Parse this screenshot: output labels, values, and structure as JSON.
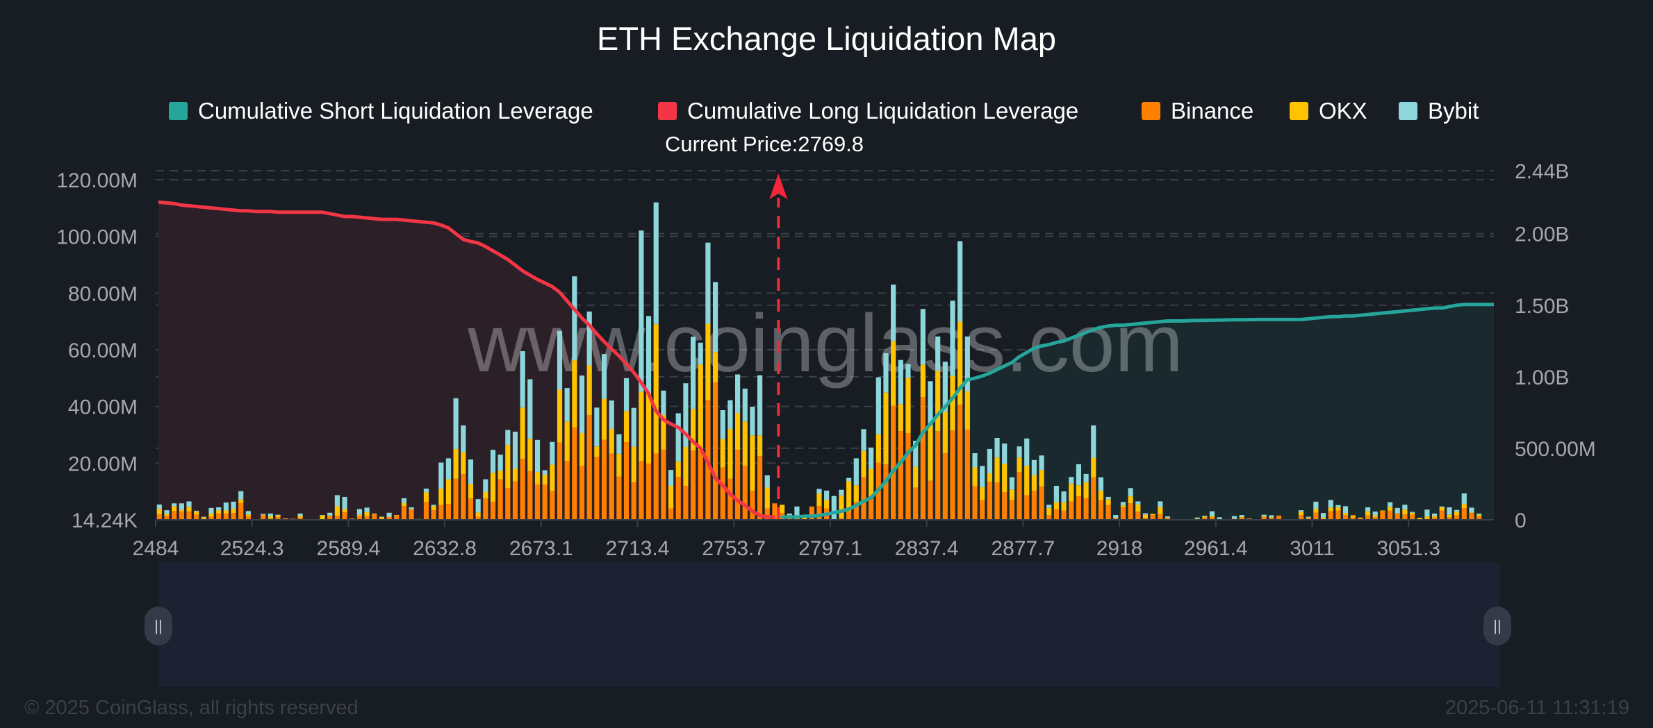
{
  "title": "ETH Exchange Liquidation Map",
  "legend": [
    {
      "label": "Cumulative Short Liquidation Leverage",
      "color": "#26a69a"
    },
    {
      "label": "Cumulative Long Liquidation Leverage",
      "color": "#f23645"
    },
    {
      "label": "Binance",
      "color": "#ff8000"
    },
    {
      "label": "OKX",
      "color": "#ffc300"
    },
    {
      "label": "Bybit",
      "color": "#8dd6da"
    }
  ],
  "current_price_label": "Current Price:2769.8",
  "watermark": "www.coinglass.com",
  "footer": {
    "copyright": "© 2025 CoinGlass, all rights reserved",
    "timestamp": "2025-06-11 11:31:19"
  },
  "slider": {
    "start_handle_icon": "grip-icon",
    "end_handle_icon": "grip-icon"
  },
  "chart_data": {
    "type": "bar",
    "title": "ETH Exchange Liquidation Map",
    "current_price": 2769.8,
    "grid": true,
    "legend_position": "top",
    "x_tick_labels": [
      "2484",
      "2524.3",
      "2589.4",
      "2632.8",
      "2673.1",
      "2713.4",
      "2753.7",
      "2797.1",
      "2837.4",
      "2877.7",
      "2918",
      "2961.4",
      "3011",
      "3051.3"
    ],
    "x_tick_every": 13,
    "left_axis": {
      "unit": "M",
      "ylim": [
        0,
        120
      ],
      "ticks": [
        0,
        20,
        40,
        60,
        80,
        100,
        120
      ],
      "labels": [
        "14.24K",
        "20.00M",
        "40.00M",
        "60.00M",
        "80.00M",
        "100.00M",
        "120.00M"
      ]
    },
    "right_axis": {
      "unit": "B",
      "ylim": [
        0,
        2.44
      ],
      "ticks": [
        0,
        0.5,
        1,
        1.5,
        2,
        2.44
      ],
      "labels": [
        "0",
        "500.00M",
        "1.00B",
        "1.50B",
        "2.00B",
        "2.44B"
      ]
    },
    "series": [
      {
        "name": "Binance",
        "axis": "left",
        "stack": "exchange",
        "values": [
          2.0,
          1.4,
          3.1,
          2.9,
          2.9,
          1.8,
          0.2,
          1.1,
          2.2,
          2.2,
          2.4,
          5.9,
          1.3,
          0.1,
          1.6,
          0.4,
          0.9,
          0.4,
          0.4,
          0.7,
          0.1,
          0,
          0.2,
          1.3,
          1.4,
          2.7,
          0.3,
          1.3,
          1.2,
          1.9,
          0.3,
          1.0,
          1.6,
          4.9,
          3.7,
          0.2,
          6.3,
          3.4,
          5.2,
          5.6,
          14.5,
          16.1,
          7.5,
          1.1,
          7.5,
          6.3,
          14.3,
          11.2,
          13.6,
          21.5,
          17.2,
          12.4,
          12.4,
          10.1,
          27.3,
          20.8,
          32.6,
          19.0,
          36.9,
          22.2,
          28.2,
          23.4,
          15.3,
          27.4,
          13.2,
          20.8,
          19.8,
          23.4,
          24.7,
          4.0,
          15.1,
          12.0,
          24.4,
          24.4,
          42.2,
          48.5,
          18.5,
          14.5,
          24.7,
          19.1,
          10.2,
          22.5,
          4.0,
          5.8,
          2.4,
          0.7,
          0.2,
          0.2,
          4.7,
          4.9,
          4.0,
          0.2,
          0.6,
          3.0,
          6.3,
          15.0,
          7.9,
          20.2,
          19.6,
          40.2,
          31.3,
          30.6,
          11.4,
          43.3,
          13.8,
          31.3,
          23.5,
          31.6,
          40.6,
          31.8,
          11.8,
          6.8,
          13.4,
          13.2,
          9.7,
          7.0,
          16.9,
          8.7,
          10.2,
          11.7,
          1.7,
          3.7,
          3.2,
          6.5,
          8.3,
          7.6,
          14.9,
          6.9,
          5.2,
          0.6,
          4.4,
          5.8,
          2.9,
          0.7,
          1.7,
          2.0,
          0.5,
          0.2,
          0.05,
          0.1,
          0.3,
          0.8,
          0.9,
          0.1,
          0,
          0.4,
          0.8,
          0.5,
          0.1,
          1.0,
          0.8,
          1.5,
          0.05,
          0.05,
          1.7,
          0.5,
          2.5,
          0.1,
          3.0,
          3.3,
          1.7,
          0.8,
          0.6,
          1.6,
          0.9,
          3.0,
          3.2,
          2.3,
          1.9,
          1.8,
          0.1,
          0.2,
          0.8,
          3.3,
          0.9,
          1.6,
          4.1,
          2.4,
          1.3
        ]
      },
      {
        "name": "OKX",
        "axis": "left",
        "stack": "exchange",
        "values": [
          1.9,
          0.7,
          1.7,
          0.6,
          1.6,
          1.1,
          0.7,
          1.1,
          1.1,
          1.1,
          1.5,
          1.3,
          0.6,
          0,
          0.2,
          0.8,
          0.7,
          0.1,
          0,
          0.7,
          0,
          0,
          1.4,
          0.2,
          3.4,
          1.2,
          0.1,
          0.5,
          1.5,
          0.2,
          0.7,
          0.1,
          0.1,
          1.0,
          0,
          0.1,
          3.4,
          1.5,
          5.8,
          8.7,
          10.5,
          7.8,
          5.1,
          1.5,
          2.3,
          10.3,
          3.0,
          15.2,
          4.5,
          18.1,
          11.4,
          4.5,
          3.5,
          9.4,
          18.6,
          13.9,
          23.7,
          11.6,
          17.6,
          3.7,
          14.5,
          8.7,
          8.0,
          11.0,
          12.6,
          24.4,
          24.9,
          45.6,
          12.3,
          8.0,
          5.4,
          13.7,
          14.7,
          30.4,
          27.0,
          10.7,
          10.0,
          17.6,
          13.0,
          15.6,
          19.6,
          7.3,
          7.4,
          0,
          2.9,
          1.0,
          0.4,
          0.6,
          0,
          4.4,
          3.0,
          0,
          8.0,
          10.6,
          5.9,
          9.3,
          10.1,
          10.0,
          25.3,
          22.9,
          9.5,
          19.5,
          7.3,
          11.4,
          19.6,
          21.3,
          14.6,
          19.2,
          29.3,
          13.5,
          6.7,
          4.7,
          3.0,
          8.8,
          10.0,
          3.7,
          5.1,
          10.3,
          5.6,
          5.9,
          2.5,
          2.5,
          3.0,
          6.3,
          3.9,
          5.6,
          7.0,
          3.4,
          2.0,
          0,
          0.7,
          2.5,
          2.5,
          1.1,
          0.4,
          2.5,
          0.3,
          0,
          0,
          0.1,
          0.1,
          0.3,
          0.5,
          0,
          0,
          0,
          0.3,
          0,
          0,
          0.2,
          0.1,
          0,
          0,
          0,
          1.1,
          0.3,
          1.4,
          0.7,
          1.3,
          1.2,
          0.7,
          0.8,
          0.2,
          1.4,
          0.7,
          0.3,
          1.4,
          0,
          1.7,
          0.7,
          0.6,
          1.0,
          0.6,
          1.1,
          0.9,
          1.2,
          1.5,
          0.2,
          0.5
        ]
      },
      {
        "name": "Bybit",
        "axis": "left",
        "stack": "exchange",
        "values": [
          1.5,
          1.3,
          1.0,
          2.3,
          2.0,
          0.3,
          0.2,
          2.0,
          1.1,
          2.8,
          2.5,
          2.9,
          1.2,
          0.1,
          0.3,
          1.0,
          0.2,
          0,
          0,
          0.8,
          0.1,
          0.05,
          0.1,
          1.0,
          3.9,
          4.2,
          0,
          2.0,
          1.6,
          0.1,
          0.1,
          1.4,
          0,
          1.7,
          0.7,
          0,
          1.3,
          0.4,
          9.2,
          7.4,
          17.9,
          9.4,
          8.7,
          4.7,
          4.5,
          8.1,
          5.7,
          5.3,
          13.0,
          19.9,
          21.0,
          11.3,
          1.6,
          8.0,
          20.8,
          11.8,
          29.6,
          20.3,
          19.0,
          13.7,
          15.8,
          10.0,
          6.9,
          11.6,
          13.7,
          56.9,
          27.2,
          43.0,
          8.6,
          5.6,
          17.1,
          22.5,
          25.5,
          7.7,
          28.6,
          24.7,
          10.2,
          10.1,
          13.6,
          11.6,
          10.1,
          21.2,
          4.3,
          0,
          0,
          0.5,
          4.1,
          0,
          0,
          1.6,
          3.3,
          8.2,
          2.0,
          1.2,
          9.5,
          7.7,
          7.5,
          20.1,
          13.9,
          19.9,
          15.6,
          4.9,
          9.2,
          19.7,
          15.5,
          12.1,
          17.7,
          26.5,
          28.4,
          19.4,
          5.0,
          7.5,
          8.6,
          6.9,
          7.2,
          4.3,
          3.9,
          9.7,
          5.3,
          5.1,
          1.1,
          5.8,
          3.8,
          2.3,
          7.4,
          3.0,
          11.4,
          4.7,
          0.9,
          1.1,
          1.2,
          2.9,
          1.1,
          0.5,
          0,
          2.0,
          0.4,
          0,
          0,
          0,
          0.4,
          0.3,
          1.6,
          0.8,
          0,
          0.9,
          0.6,
          0,
          0,
          0.6,
          0.7,
          0,
          0,
          0,
          0.6,
          0.3,
          2.5,
          1.6,
          2.7,
          0.7,
          2.4,
          0,
          0,
          1.4,
          1.3,
          0,
          1.6,
          1.9,
          1.7,
          0.3,
          0,
          2.4,
          0.8,
          0.3,
          2.6,
          0.7,
          3.7,
          1.7,
          0.4
        ]
      },
      {
        "name": "Cumulative Long Liquidation Leverage",
        "type": "line",
        "axis": "right",
        "values": [
          2.22,
          2.215,
          2.21,
          2.2,
          2.195,
          2.19,
          2.185,
          2.18,
          2.175,
          2.17,
          2.165,
          2.16,
          2.16,
          2.155,
          2.155,
          2.155,
          2.15,
          2.15,
          2.15,
          2.15,
          2.15,
          2.15,
          2.15,
          2.14,
          2.13,
          2.12,
          2.12,
          2.115,
          2.11,
          2.105,
          2.1,
          2.1,
          2.1,
          2.095,
          2.09,
          2.085,
          2.08,
          2.075,
          2.06,
          2.04,
          2.0,
          1.96,
          1.945,
          1.935,
          1.91,
          1.88,
          1.85,
          1.82,
          1.78,
          1.74,
          1.71,
          1.68,
          1.655,
          1.63,
          1.59,
          1.53,
          1.47,
          1.41,
          1.36,
          1.3,
          1.245,
          1.195,
          1.145,
          1.09,
          1.03,
          0.96,
          0.88,
          0.76,
          0.7,
          0.67,
          0.645,
          0.6,
          0.545,
          0.5,
          0.4,
          0.29,
          0.24,
          0.18,
          0.135,
          0.1,
          0.06,
          0.03,
          0.02,
          0.02,
          null,
          null,
          null,
          null,
          null,
          null,
          null,
          null,
          null,
          null,
          null,
          null,
          null,
          null,
          null,
          null,
          null,
          null,
          null,
          null,
          null,
          null,
          null,
          null,
          null,
          null,
          null,
          null,
          null,
          null,
          null,
          null,
          null,
          null,
          null,
          null,
          null,
          null,
          null,
          null,
          null,
          null,
          null,
          null,
          null,
          null,
          null,
          null,
          null,
          null,
          null,
          null,
          null,
          null,
          null,
          null,
          null,
          null,
          null,
          null,
          null,
          null,
          null,
          null,
          null,
          null,
          null,
          null,
          null,
          null,
          null,
          null,
          null,
          null,
          null,
          null,
          null,
          null,
          null,
          null,
          null,
          null,
          null,
          null,
          null,
          null,
          null,
          null,
          null,
          null,
          null,
          null,
          null,
          null,
          null,
          null,
          null,
          null,
          null,
          null,
          null
        ]
      },
      {
        "name": "Cumulative Short Liquidation Leverage",
        "type": "line",
        "axis": "right",
        "values": [
          null,
          null,
          null,
          null,
          null,
          null,
          null,
          null,
          null,
          null,
          null,
          null,
          null,
          null,
          null,
          null,
          null,
          null,
          null,
          null,
          null,
          null,
          null,
          null,
          null,
          null,
          null,
          null,
          null,
          null,
          null,
          null,
          null,
          null,
          null,
          null,
          null,
          null,
          null,
          null,
          null,
          null,
          null,
          null,
          null,
          null,
          null,
          null,
          null,
          null,
          null,
          null,
          null,
          null,
          null,
          null,
          null,
          null,
          null,
          null,
          null,
          null,
          null,
          null,
          null,
          null,
          null,
          null,
          null,
          null,
          null,
          null,
          null,
          null,
          null,
          null,
          null,
          null,
          null,
          null,
          null,
          null,
          null,
          null,
          0.02,
          0.02,
          0.02,
          0.025,
          0.025,
          0.03,
          0.04,
          0.05,
          0.06,
          0.075,
          0.1,
          0.13,
          0.155,
          0.21,
          0.27,
          0.345,
          0.4,
          0.47,
          0.52,
          0.61,
          0.67,
          0.735,
          0.79,
          0.85,
          0.92,
          0.98,
          0.99,
          1.005,
          1.025,
          1.05,
          1.075,
          1.1,
          1.14,
          1.17,
          1.2,
          1.215,
          1.225,
          1.24,
          1.25,
          1.27,
          1.29,
          1.31,
          1.33,
          1.345,
          1.355,
          1.36,
          1.36,
          1.365,
          1.37,
          1.375,
          1.38,
          1.385,
          1.39,
          1.39,
          1.39,
          1.392,
          1.393,
          1.394,
          1.395,
          1.396,
          1.397,
          1.398,
          1.398,
          1.399,
          1.4,
          1.4,
          1.4,
          1.4,
          1.4,
          1.4,
          1.4,
          1.405,
          1.41,
          1.415,
          1.42,
          1.42,
          1.425,
          1.425,
          1.43,
          1.435,
          1.44,
          1.445,
          1.45,
          1.455,
          1.46,
          1.465,
          1.47,
          1.475,
          1.48,
          1.48,
          1.49,
          1.5,
          1.505,
          1.505,
          1.505
        ]
      }
    ]
  }
}
